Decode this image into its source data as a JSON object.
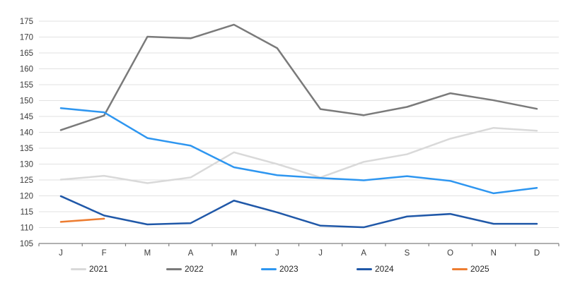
{
  "chart_data": {
    "type": "line",
    "title": "",
    "xlabel": "",
    "ylabel": "",
    "categories": [
      "J",
      "F",
      "M",
      "A",
      "M",
      "J",
      "J",
      "A",
      "S",
      "O",
      "N",
      "D"
    ],
    "ylim": [
      105,
      175
    ],
    "ytick_step": 5,
    "ytick_labels": [
      "105",
      "110",
      "115",
      "120",
      "125",
      "130",
      "135",
      "140",
      "145",
      "150",
      "155",
      "160",
      "165",
      "170",
      "175"
    ],
    "grid": true,
    "legend_position": "bottom",
    "series": [
      {
        "name": "2021",
        "color": "#d9d9d9",
        "values": [
          125.1,
          126.3,
          124.0,
          125.8,
          133.7,
          130.0,
          125.8,
          130.7,
          133.1,
          138.0,
          141.4,
          140.5
        ]
      },
      {
        "name": "2022",
        "color": "#7a7a7a",
        "values": [
          140.7,
          145.3,
          170.1,
          169.6,
          173.9,
          166.5,
          147.3,
          145.4,
          148.0,
          152.3,
          150.1,
          147.4
        ]
      },
      {
        "name": "2023",
        "color": "#2e96f0",
        "values": [
          147.6,
          146.3,
          138.2,
          135.8,
          129.0,
          126.5,
          125.6,
          124.9,
          126.2,
          124.7,
          120.8,
          122.5
        ]
      },
      {
        "name": "2024",
        "color": "#2058a8",
        "values": [
          119.9,
          113.8,
          111.0,
          111.4,
          118.5,
          114.8,
          110.6,
          110.1,
          113.5,
          114.3,
          111.2,
          111.2
        ]
      },
      {
        "name": "2025",
        "color": "#ed7d31",
        "values": [
          111.8,
          112.8,
          null,
          null,
          null,
          null,
          null,
          null,
          null,
          null,
          null,
          null
        ]
      }
    ],
    "axis_color": "#808080",
    "gridline_color": "#e2e2e2",
    "tick_label_color": "#3b3b3b"
  }
}
